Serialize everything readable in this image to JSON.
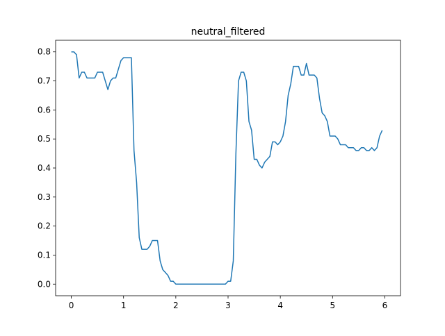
{
  "chart_data": {
    "type": "line",
    "title": "neutral_filtered",
    "x": [
      0,
      0.05,
      0.1,
      0.15,
      0.2,
      0.25,
      0.3,
      0.35,
      0.4,
      0.45,
      0.5,
      0.55,
      0.6,
      0.65,
      0.7,
      0.75,
      0.8,
      0.85,
      0.9,
      0.95,
      1,
      1.05,
      1.1,
      1.15,
      1.2,
      1.25,
      1.3,
      1.35,
      1.4,
      1.45,
      1.5,
      1.55,
      1.6,
      1.65,
      1.7,
      1.75,
      1.8,
      1.85,
      1.9,
      1.95,
      2,
      2.05,
      2.1,
      2.15,
      2.2,
      2.25,
      2.3,
      2.35,
      2.4,
      2.45,
      2.5,
      2.55,
      2.6,
      2.65,
      2.7,
      2.75,
      2.8,
      2.85,
      2.9,
      2.95,
      3,
      3.05,
      3.1,
      3.15,
      3.2,
      3.25,
      3.3,
      3.35,
      3.4,
      3.45,
      3.5,
      3.55,
      3.6,
      3.65,
      3.7,
      3.75,
      3.8,
      3.85,
      3.9,
      3.95,
      4,
      4.05,
      4.1,
      4.15,
      4.2,
      4.25,
      4.3,
      4.35,
      4.4,
      4.45,
      4.5,
      4.55,
      4.6,
      4.65,
      4.7,
      4.75,
      4.8,
      4.85,
      4.9,
      4.95,
      5,
      5.05,
      5.1,
      5.15,
      5.2,
      5.25,
      5.3,
      5.35,
      5.4,
      5.45,
      5.5,
      5.55,
      5.6,
      5.65,
      5.7,
      5.75,
      5.8,
      5.85,
      5.9,
      5.95
    ],
    "series": [
      {
        "color": "#1f77b4",
        "values": [
          0.8,
          0.8,
          0.79,
          0.71,
          0.73,
          0.73,
          0.71,
          0.71,
          0.71,
          0.71,
          0.73,
          0.73,
          0.73,
          0.7,
          0.67,
          0.7,
          0.71,
          0.71,
          0.74,
          0.77,
          0.78,
          0.78,
          0.78,
          0.78,
          0.46,
          0.35,
          0.16,
          0.12,
          0.12,
          0.12,
          0.13,
          0.15,
          0.15,
          0.15,
          0.08,
          0.05,
          0.04,
          0.03,
          0.01,
          0.01,
          0,
          0,
          0,
          0,
          0,
          0,
          0,
          0,
          0,
          0,
          0,
          0,
          0,
          0,
          0,
          0,
          0,
          0,
          0,
          0,
          0.01,
          0.01,
          0.08,
          0.45,
          0.7,
          0.73,
          0.73,
          0.7,
          0.56,
          0.53,
          0.43,
          0.43,
          0.41,
          0.4,
          0.42,
          0.43,
          0.44,
          0.49,
          0.49,
          0.48,
          0.49,
          0.51,
          0.56,
          0.65,
          0.69,
          0.75,
          0.75,
          0.75,
          0.72,
          0.72,
          0.76,
          0.72,
          0.72,
          0.72,
          0.71,
          0.64,
          0.59,
          0.58,
          0.56,
          0.51,
          0.51,
          0.51,
          0.5,
          0.48,
          0.48,
          0.48,
          0.47,
          0.47,
          0.47,
          0.46,
          0.46,
          0.47,
          0.47,
          0.46,
          0.46,
          0.47,
          0.46,
          0.47,
          0.51,
          0.53
        ]
      }
    ],
    "xlim": [
      -0.3,
      6.3
    ],
    "xticks": [
      0,
      1,
      2,
      3,
      4,
      5,
      6
    ],
    "ylim": [
      -0.04,
      0.84
    ],
    "yticks": [
      {
        "value": 0,
        "label": "0.0"
      },
      0.1,
      0.2,
      0.3,
      0.4,
      0.5,
      0.6,
      0.7,
      0.8
    ]
  }
}
